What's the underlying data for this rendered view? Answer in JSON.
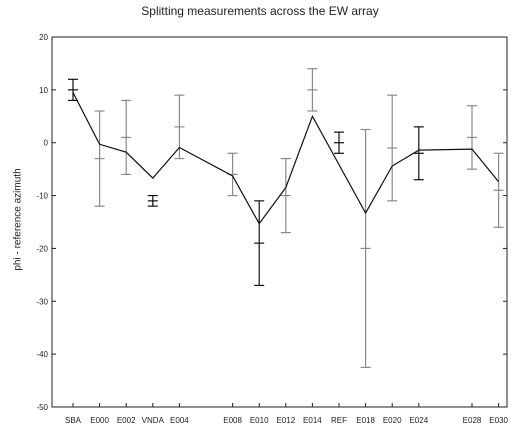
{
  "chart_data": {
    "type": "line",
    "title": "Splitting measurements across the EW array",
    "xlabel": "",
    "ylabel": "phi - reference azimuth",
    "ylim": [
      -50,
      20
    ],
    "yticks": [
      20,
      10,
      0,
      -10,
      -20,
      -30,
      -40,
      -50
    ],
    "grid": false,
    "stations": [
      "SBA",
      "E000",
      "E002",
      "VNDA",
      "E004",
      "E008",
      "E010",
      "E012",
      "E014",
      "REF",
      "E018",
      "E020",
      "E024",
      "E028",
      "E030"
    ],
    "station_x": [
      0,
      1,
      2,
      3,
      4,
      6,
      7,
      8,
      9,
      10,
      11,
      12,
      13,
      15,
      16
    ],
    "line": {
      "x": [
        0,
        1,
        2,
        3,
        4,
        6,
        7,
        8,
        9,
        11,
        12,
        13,
        15,
        16
      ],
      "y": [
        9.5,
        -0.3,
        -1.8,
        -6.7,
        -0.9,
        -6.3,
        -15.3,
        -8.5,
        5,
        -13.3,
        -4.4,
        -1.4,
        -1.2,
        -7.4
      ]
    },
    "error_bars": [
      {
        "x": 0,
        "mid": 10,
        "low": 8,
        "high": 12
      },
      {
        "x": 1,
        "mid": -3,
        "low": -12,
        "high": 6
      },
      {
        "x": 2,
        "mid": 1,
        "low": -6,
        "high": 8
      },
      {
        "x": 3,
        "mid": -11,
        "low": -12,
        "high": -10
      },
      {
        "x": 4,
        "mid": 3,
        "low": -3,
        "high": 9
      },
      {
        "x": 6,
        "mid": -6,
        "low": -10,
        "high": -2
      },
      {
        "x": 7,
        "mid": -19,
        "low": -27,
        "high": -11
      },
      {
        "x": 8,
        "mid": -10,
        "low": -17,
        "high": -3
      },
      {
        "x": 9,
        "mid": 10,
        "low": 6,
        "high": 14
      },
      {
        "x": 10,
        "mid": 0,
        "low": -2,
        "high": 2
      },
      {
        "x": 11,
        "mid": -20,
        "low": -42.5,
        "high": 2.5
      },
      {
        "x": 12,
        "mid": -1,
        "low": -11,
        "high": 9
      },
      {
        "x": 13,
        "mid": -2,
        "low": -7,
        "high": 3
      },
      {
        "x": 15,
        "mid": 1,
        "low": -5,
        "high": 7
      },
      {
        "x": 16,
        "mid": -9,
        "low": -16,
        "high": -2
      }
    ],
    "colors": {
      "line": "#111111",
      "errorbar_grey": "#8a8a8a",
      "errorbar_dark": "#111111",
      "axes": "#222222"
    }
  }
}
